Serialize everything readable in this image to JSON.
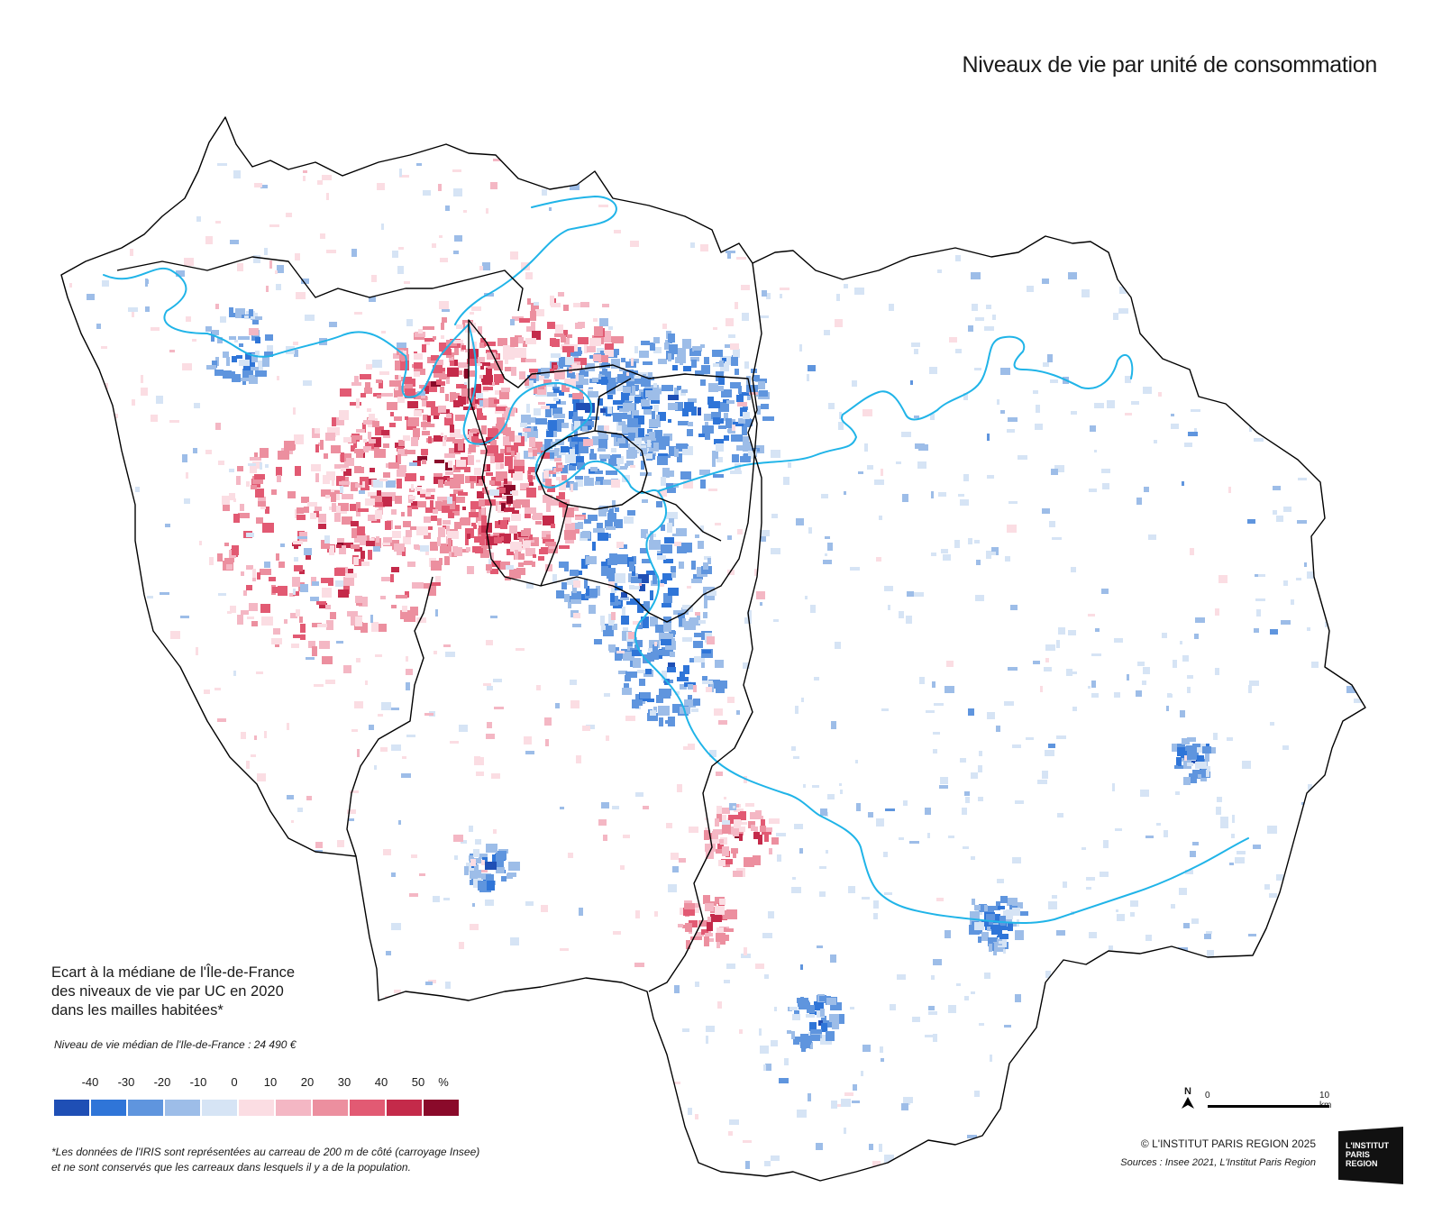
{
  "title": "Niveaux de vie par unité de consommation",
  "legend": {
    "title_lines": [
      "Ecart à la médiane de l'Île-de-France",
      "des niveaux de vie par UC en 2020",
      "dans les mailles habitées*"
    ],
    "median_note": "Niveau de vie médian de l'Ile-de-France : 24 490 €",
    "ticks": [
      "-40",
      "-30",
      "-20",
      "-10",
      "0",
      "10",
      "20",
      "30",
      "40",
      "50",
      "%"
    ],
    "colors": [
      "#1f4fb5",
      "#2f75d8",
      "#5f95de",
      "#9dbde8",
      "#d6e4f5",
      "#fbdde3",
      "#f4b7c4",
      "#ec8f9f",
      "#e25a73",
      "#c42a4a",
      "#8a0a2a"
    ]
  },
  "footnote": [
    "*Les données de l'IRIS sont représentées au carreau de 200 m de côté (carroyage Insee)",
    "et ne sont conservés que les carreaux dans lesquels il y a de la population."
  ],
  "north_label": "N",
  "scale": {
    "start": "0",
    "end": "10 km"
  },
  "copyright": "© L'INSTITUT PARIS REGION 2025",
  "sources": "Sources : Insee 2021, L'Institut Paris Region",
  "logo_lines": [
    "L'INSTITUT",
    "PARIS",
    "REGION"
  ],
  "map": {
    "river_color": "#20b4e8",
    "boundary_color": "#000000"
  }
}
